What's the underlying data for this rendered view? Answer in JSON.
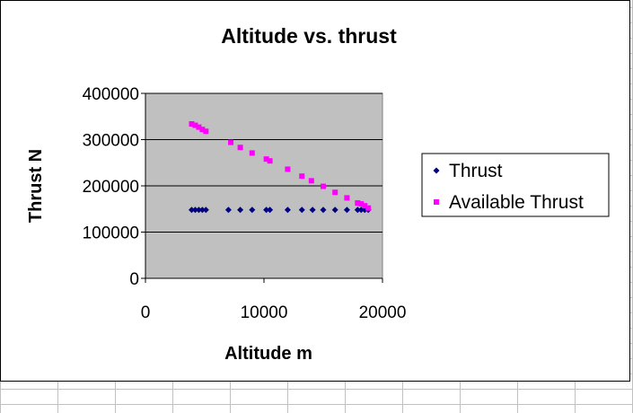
{
  "chart_data": {
    "type": "scatter",
    "title": "Altitude vs. thrust",
    "xlabel": "Altitude m",
    "ylabel": "Thrust N",
    "xlim": [
      0,
      20000
    ],
    "ylim": [
      0,
      400000
    ],
    "xticks": [
      0,
      10000,
      20000
    ],
    "yticks": [
      0,
      100000,
      200000,
      300000,
      400000
    ],
    "grid": true,
    "legend_position": "right",
    "plot_background": "#c0c0c0",
    "series": [
      {
        "name": "Thrust",
        "marker": "diamond",
        "color": "#000080",
        "points": [
          [
            3900,
            148000
          ],
          [
            4200,
            148000
          ],
          [
            4500,
            148000
          ],
          [
            4800,
            148000
          ],
          [
            5100,
            148000
          ],
          [
            7000,
            148000
          ],
          [
            8000,
            148000
          ],
          [
            9000,
            148000
          ],
          [
            10200,
            148000
          ],
          [
            10500,
            148000
          ],
          [
            12000,
            148000
          ],
          [
            13200,
            148000
          ],
          [
            14100,
            148000
          ],
          [
            15000,
            148000
          ],
          [
            16000,
            148000
          ],
          [
            17000,
            148000
          ],
          [
            17900,
            148000
          ],
          [
            18200,
            148000
          ],
          [
            18500,
            148000
          ],
          [
            18800,
            148000
          ]
        ]
      },
      {
        "name": "Available Thrust",
        "marker": "square",
        "color": "#ff00ff",
        "points": [
          [
            3900,
            334000
          ],
          [
            4200,
            331000
          ],
          [
            4500,
            327000
          ],
          [
            4800,
            322000
          ],
          [
            5100,
            318000
          ],
          [
            7200,
            294000
          ],
          [
            8000,
            283000
          ],
          [
            9000,
            271000
          ],
          [
            10200,
            258000
          ],
          [
            10500,
            254000
          ],
          [
            12000,
            236000
          ],
          [
            13200,
            221000
          ],
          [
            14000,
            211000
          ],
          [
            15000,
            199000
          ],
          [
            16000,
            186000
          ],
          [
            17000,
            174000
          ],
          [
            17900,
            163000
          ],
          [
            18200,
            161000
          ],
          [
            18500,
            157000
          ],
          [
            18800,
            152000
          ]
        ]
      }
    ]
  }
}
